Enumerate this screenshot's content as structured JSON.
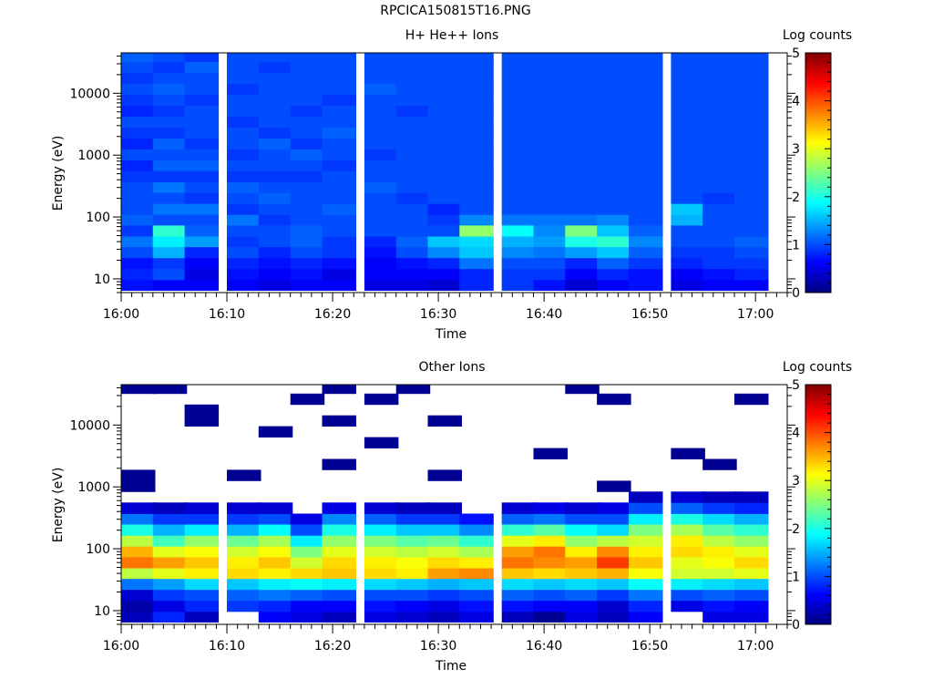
{
  "figure_title": "RPCICA150815T16.PNG",
  "colors": {
    "colormap": [
      "#00007f",
      "#0000ff",
      "#007fff",
      "#00ffff",
      "#7fff7f",
      "#ffff00",
      "#ff7f00",
      "#ff0000",
      "#7f0000"
    ]
  },
  "chart_data": [
    {
      "type": "heatmap",
      "title": "H+ He++ Ions",
      "xlabel": "Time",
      "ylabel": "Energy (eV)",
      "yscale": "log",
      "ylim": [
        6,
        45000
      ],
      "xlim": [
        "16:00",
        "17:03"
      ],
      "x_ticks": [
        "16:00",
        "16:10",
        "16:20",
        "16:30",
        "16:40",
        "16:50",
        "17:00"
      ],
      "y_ticks": [
        "10",
        "100",
        "1000",
        "10000"
      ],
      "colorbar": {
        "label": "Log counts",
        "range": [
          0,
          5
        ],
        "ticks": [
          "0",
          "1",
          "2",
          "3",
          "4",
          "5"
        ]
      },
      "time_bins": [
        "16:00",
        "16:03",
        "16:06",
        "16:10",
        "16:13",
        "16:16",
        "16:19",
        "16:23",
        "16:26",
        "16:29",
        "16:32",
        "16:36",
        "16:39",
        "16:42",
        "16:45",
        "16:48",
        "16:52",
        "16:55",
        "16:58"
      ],
      "bin_width_minutes": 3.2,
      "energy_bin_edges": [
        6.5,
        9.7,
        14.6,
        22,
        33,
        49,
        74,
        110,
        165,
        250,
        370,
        560,
        840,
        1260,
        1890,
        2830,
        4250,
        6380,
        9570,
        14350,
        21500,
        32300,
        45000
      ],
      "log_counts": [
        [
          0.7,
          0.8,
          0.7,
          1.0,
          1.2,
          0.9,
          1.1,
          1.0,
          1.0,
          1.0,
          0.9,
          0.8,
          1.0,
          0.8,
          0.9,
          1.0,
          0.8,
          0.9,
          1.0,
          0.9,
          1.0,
          1.1
        ],
        [
          0.6,
          1.0,
          0.9,
          1.5,
          1.8,
          2.1,
          1.0,
          1.2,
          1.0,
          1.2,
          0.9,
          1.1,
          1.0,
          1.1,
          0.9,
          1.0,
          0.9,
          1.0,
          1.1,
          1.0,
          0.9,
          1.0
        ],
        [
          0.6,
          0.5,
          0.6,
          0.8,
          1.4,
          1.1,
          1.0,
          1.2,
          0.9,
          1.0,
          0.9,
          1.1,
          1.0,
          0.9,
          1.0,
          1.0,
          1.0,
          0.9,
          1.0,
          1.0,
          1.1,
          0.9
        ],
        [
          0.6,
          0.7,
          0.8,
          1.0,
          0.9,
          1.0,
          1.2,
          0.9,
          1.0,
          1.1,
          0.9,
          1.0,
          0.9,
          1.0,
          1.0,
          0.9,
          1.0,
          1.0,
          0.9,
          1.0,
          1.0,
          1.0
        ],
        [
          0.5,
          0.6,
          0.7,
          0.8,
          1.0,
          1.0,
          0.9,
          1.0,
          1.1,
          1.0,
          0.9,
          1.0,
          1.0,
          1.1,
          0.9,
          1.0,
          1.0,
          1.0,
          1.0,
          1.0,
          0.9,
          1.0
        ],
        [
          0.6,
          0.7,
          0.8,
          1.0,
          1.1,
          1.1,
          1.0,
          1.0,
          1.0,
          1.0,
          0.9,
          1.0,
          1.1,
          0.9,
          1.0,
          1.0,
          0.9,
          1.0,
          1.0,
          1.0,
          1.0,
          1.0
        ],
        [
          0.6,
          0.5,
          0.7,
          0.9,
          0.9,
          1.0,
          1.0,
          1.1,
          1.0,
          1.0,
          1.0,
          0.9,
          1.0,
          1.0,
          1.1,
          1.0,
          1.0,
          0.9,
          1.0,
          1.0,
          1.0,
          1.0
        ],
        [
          0.5,
          0.6,
          0.6,
          0.7,
          0.8,
          1.0,
          1.0,
          1.0,
          1.0,
          1.1,
          1.0,
          1.0,
          0.9,
          1.0,
          1.0,
          1.0,
          1.0,
          1.0,
          1.1,
          1.0,
          1.0,
          1.0
        ],
        [
          0.5,
          0.6,
          0.7,
          1.0,
          1.1,
          1.0,
          1.0,
          1.0,
          0.9,
          1.0,
          1.0,
          1.0,
          1.0,
          1.0,
          1.0,
          1.0,
          0.9,
          1.0,
          1.0,
          1.0,
          1.0,
          1.0
        ],
        [
          0.4,
          0.6,
          0.8,
          1.3,
          1.6,
          1.0,
          0.9,
          0.8,
          1.0,
          1.0,
          1.0,
          1.0,
          1.0,
          1.0,
          1.0,
          1.0,
          1.0,
          1.0,
          1.0,
          1.0,
          1.0,
          1.0
        ],
        [
          0.8,
          0.8,
          1.2,
          1.6,
          1.7,
          2.6,
          1.3,
          1.0,
          1.0,
          1.0,
          1.0,
          1.0,
          1.0,
          1.0,
          1.0,
          1.0,
          1.0,
          1.0,
          1.0,
          1.0,
          1.0,
          1.0
        ],
        [
          0.9,
          0.9,
          1.0,
          1.3,
          1.5,
          1.9,
          1.2,
          1.0,
          1.0,
          1.0,
          1.0,
          1.0,
          1.0,
          1.0,
          1.0,
          1.0,
          1.0,
          1.0,
          1.0,
          1.0,
          1.0,
          1.0
        ],
        [
          0.7,
          0.9,
          1.0,
          1.2,
          1.4,
          1.3,
          1.2,
          1.0,
          1.0,
          1.0,
          1.0,
          1.0,
          1.0,
          1.0,
          1.0,
          1.0,
          1.0,
          1.0,
          1.0,
          1.0,
          1.0,
          1.0
        ],
        [
          0.4,
          0.6,
          0.8,
          1.4,
          2.0,
          2.5,
          1.2,
          1.0,
          1.0,
          1.0,
          1.0,
          1.0,
          1.0,
          1.0,
          1.0,
          1.0,
          1.0,
          1.0,
          1.0,
          1.0,
          1.0,
          1.0
        ],
        [
          0.6,
          0.8,
          1.1,
          1.6,
          2.1,
          1.6,
          1.3,
          1.0,
          1.0,
          1.0,
          1.0,
          1.0,
          1.0,
          1.0,
          1.0,
          1.0,
          1.0,
          1.0,
          1.0,
          1.0,
          1.0,
          1.0
        ],
        [
          0.7,
          0.7,
          0.9,
          1.1,
          1.3,
          1.1,
          1.0,
          1.0,
          1.0,
          1.0,
          1.0,
          1.0,
          1.0,
          1.0,
          1.0,
          1.0,
          1.0,
          1.0,
          1.0,
          1.0,
          1.0,
          1.0
        ],
        [
          0.5,
          0.6,
          0.8,
          0.9,
          1.0,
          1.0,
          1.5,
          1.6,
          1.0,
          1.0,
          1.0,
          1.0,
          1.0,
          1.0,
          1.0,
          1.0,
          1.0,
          1.0,
          1.0,
          1.0,
          1.0,
          1.0
        ],
        [
          0.6,
          0.7,
          0.9,
          0.9,
          1.0,
          1.0,
          1.0,
          1.0,
          0.9,
          1.0,
          1.0,
          1.0,
          1.0,
          1.0,
          1.0,
          1.0,
          1.0,
          1.0,
          1.0,
          1.0,
          1.0,
          1.0
        ],
        [
          0.6,
          0.8,
          0.9,
          1.0,
          1.1,
          1.0,
          1.0,
          1.0,
          1.0,
          1.0,
          1.0,
          1.0,
          1.0,
          1.0,
          1.0,
          1.0,
          1.0,
          1.0,
          1.0,
          1.0,
          1.0,
          1.0
        ]
      ]
    },
    {
      "type": "heatmap",
      "title": "Other Ions",
      "xlabel": "Time",
      "ylabel": "Energy (eV)",
      "yscale": "log",
      "ylim": [
        6,
        45000
      ],
      "xlim": [
        "16:00",
        "17:03"
      ],
      "x_ticks": [
        "16:00",
        "16:10",
        "16:20",
        "16:30",
        "16:40",
        "16:50",
        "17:00"
      ],
      "y_ticks": [
        "10",
        "100",
        "1000",
        "10000"
      ],
      "colorbar": {
        "label": "Log counts",
        "range": [
          0,
          5
        ],
        "ticks": [
          "0",
          "1",
          "2",
          "3",
          "4",
          "5"
        ]
      },
      "time_bins": [
        "16:00",
        "16:03",
        "16:06",
        "16:10",
        "16:13",
        "16:16",
        "16:19",
        "16:23",
        "16:26",
        "16:29",
        "16:32",
        "16:36",
        "16:39",
        "16:42",
        "16:45",
        "16:48",
        "16:52",
        "16:55",
        "16:58"
      ],
      "bin_width_minutes": 3.2,
      "energy_bin_edges": [
        6.5,
        9.7,
        14.6,
        22,
        33,
        49,
        74,
        110,
        165,
        250,
        370,
        560,
        840,
        1260,
        1890,
        2830,
        4250,
        6380,
        9570,
        14350,
        21500,
        32300,
        45000
      ],
      "log_counts": [
        [
          0.3,
          0.2,
          0.4,
          1.2,
          2.8,
          3.8,
          3.5,
          2.8,
          2.0,
          1.2,
          0.4,
          null,
          0.1,
          0.1,
          null,
          null,
          null,
          null,
          null,
          null,
          null,
          0.1
        ],
        [
          0.8,
          0.5,
          0.9,
          1.4,
          3.0,
          3.6,
          3.0,
          2.2,
          1.5,
          0.9,
          0.3,
          null,
          null,
          null,
          null,
          null,
          null,
          null,
          null,
          null,
          null,
          0.1
        ],
        [
          0.3,
          0.8,
          1.0,
          1.7,
          3.2,
          3.4,
          3.1,
          2.6,
          1.8,
          0.9,
          0.4,
          null,
          null,
          null,
          null,
          null,
          null,
          null,
          0.1,
          0.1,
          null,
          null
        ],
        [
          null,
          0.9,
          1.1,
          1.6,
          3.3,
          3.2,
          2.9,
          2.4,
          1.5,
          0.9,
          0.4,
          null,
          null,
          0.1,
          null,
          null,
          null,
          null,
          null,
          null,
          null,
          null
        ],
        [
          0.6,
          0.8,
          1.2,
          1.8,
          3.2,
          3.4,
          3.1,
          2.7,
          1.9,
          1.0,
          0.4,
          null,
          null,
          null,
          null,
          null,
          null,
          0.1,
          null,
          null,
          null,
          null
        ],
        [
          0.5,
          0.6,
          1.1,
          1.9,
          3.3,
          2.9,
          2.5,
          1.8,
          1.0,
          0.5,
          null,
          null,
          null,
          null,
          null,
          null,
          null,
          null,
          null,
          null,
          0.1,
          null
        ],
        [
          0.3,
          0.6,
          1.0,
          1.8,
          3.4,
          3.3,
          3.0,
          2.6,
          2.0,
          1.3,
          0.5,
          null,
          null,
          null,
          0.1,
          null,
          null,
          null,
          0.1,
          null,
          null,
          0.1
        ],
        [
          0.5,
          0.7,
          1.0,
          1.7,
          3.3,
          3.2,
          2.9,
          2.5,
          1.8,
          1.1,
          0.4,
          null,
          null,
          null,
          null,
          null,
          0.1,
          null,
          null,
          null,
          0.1,
          null
        ],
        [
          0.4,
          0.6,
          1.0,
          1.6,
          3.2,
          3.1,
          2.8,
          2.3,
          1.6,
          0.9,
          0.3,
          null,
          null,
          null,
          null,
          null,
          null,
          null,
          null,
          null,
          null,
          0.1
        ],
        [
          0.3,
          0.5,
          0.9,
          1.5,
          3.6,
          3.3,
          2.9,
          2.4,
          1.6,
          0.9,
          0.3,
          null,
          null,
          0.1,
          null,
          null,
          null,
          null,
          0.1,
          null,
          null,
          null
        ],
        [
          0.5,
          0.7,
          1.0,
          1.6,
          3.7,
          3.2,
          2.7,
          2.1,
          1.3,
          0.7,
          null,
          null,
          null,
          null,
          null,
          null,
          null,
          null,
          null,
          null,
          null,
          null
        ],
        [
          0.3,
          0.7,
          1.1,
          1.7,
          3.4,
          3.8,
          3.6,
          3.0,
          2.1,
          1.1,
          0.4,
          null,
          null,
          null,
          null,
          null,
          null,
          null,
          null,
          null,
          null,
          null
        ],
        [
          0.1,
          0.6,
          1.0,
          1.6,
          3.3,
          3.7,
          3.8,
          3.2,
          2.3,
          1.2,
          0.5,
          null,
          null,
          null,
          null,
          0.1,
          null,
          null,
          null,
          null,
          null,
          null
        ],
        [
          0.5,
          0.6,
          1.1,
          1.7,
          3.4,
          3.6,
          3.2,
          2.6,
          1.9,
          1.0,
          0.4,
          null,
          null,
          null,
          null,
          null,
          null,
          null,
          null,
          null,
          null,
          0.1
        ],
        [
          0.3,
          0.4,
          0.9,
          1.6,
          3.5,
          4.1,
          3.7,
          2.8,
          1.7,
          1.0,
          0.5,
          null,
          0.1,
          null,
          null,
          null,
          null,
          null,
          null,
          null,
          0.1,
          null
        ],
        [
          0.6,
          0.8,
          1.2,
          1.9,
          3.1,
          3.4,
          3.2,
          2.9,
          2.5,
          1.8,
          1.0,
          0.3,
          null,
          null,
          null,
          null,
          null,
          null,
          null,
          null,
          null,
          null
        ],
        [
          null,
          0.5,
          1.0,
          1.8,
          2.9,
          3.0,
          3.3,
          3.2,
          2.7,
          2.0,
          1.1,
          0.4,
          null,
          null,
          null,
          0.1,
          null,
          null,
          null,
          null,
          null,
          null
        ],
        [
          0.5,
          0.7,
          1.1,
          1.7,
          2.9,
          3.1,
          3.2,
          2.8,
          2.3,
          1.7,
          0.9,
          0.3,
          null,
          null,
          0.1,
          null,
          null,
          null,
          null,
          null,
          null,
          null
        ],
        [
          0.5,
          0.6,
          1.0,
          1.6,
          3.0,
          3.3,
          3.0,
          2.6,
          2.1,
          1.5,
          0.8,
          0.3,
          null,
          null,
          null,
          null,
          null,
          null,
          null,
          null,
          0.1,
          null
        ]
      ]
    }
  ]
}
